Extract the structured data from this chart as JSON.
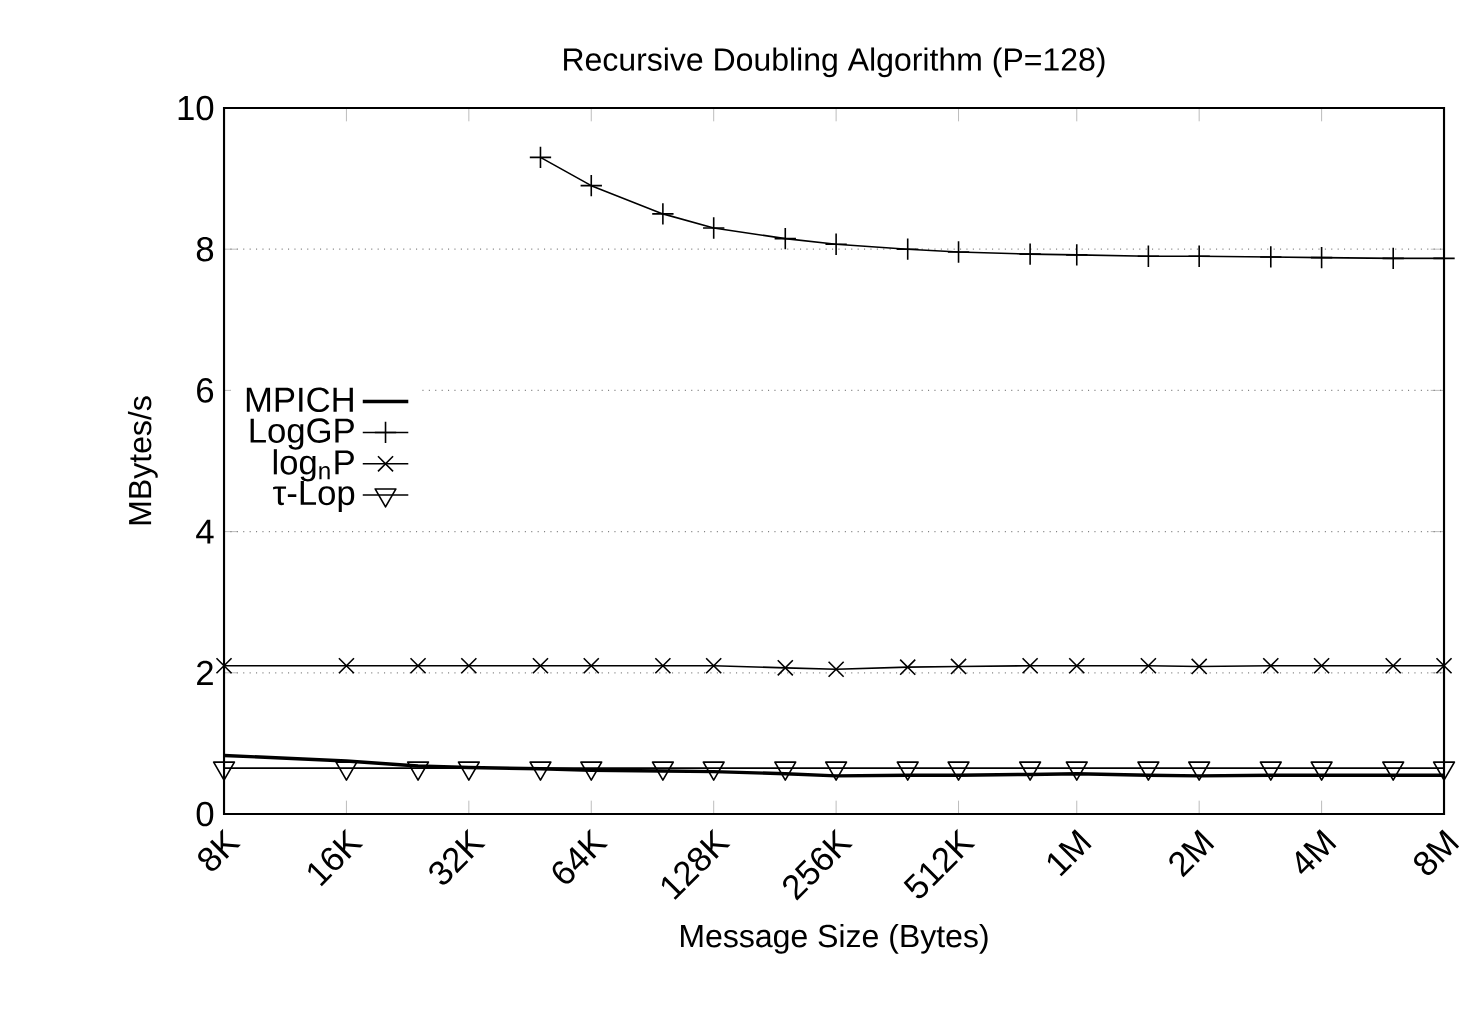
{
  "chart_data": {
    "type": "line",
    "title": "Recursive Doubling Algorithm (P=128)",
    "xlabel": "Message Size (Bytes)",
    "ylabel": "MBytes/s",
    "x": [
      8000,
      16000,
      24000,
      32000,
      48000,
      64000,
      96000,
      128000,
      192000,
      256000,
      384000,
      512000,
      768000,
      1000000,
      1500000,
      2000000,
      3000000,
      4000000,
      6000000,
      8000000
    ],
    "series": [
      {
        "name": "MPICH",
        "color": "#000000",
        "marker": "none",
        "values": [
          0.83,
          0.75,
          0.68,
          0.66,
          0.64,
          0.62,
          0.61,
          0.6,
          0.57,
          0.54,
          0.55,
          0.55,
          0.56,
          0.57,
          0.55,
          0.54,
          0.55,
          0.55,
          0.55,
          0.55
        ]
      },
      {
        "name": "LogGP",
        "color": "#000000",
        "marker": "plus",
        "values": [
          null,
          null,
          null,
          null,
          9.3,
          8.9,
          8.5,
          8.3,
          8.15,
          8.07,
          8.0,
          7.96,
          7.93,
          7.92,
          7.9,
          7.9,
          7.89,
          7.88,
          7.87,
          7.87
        ]
      },
      {
        "name": "log$_{n}$P",
        "color": "#000000",
        "marker": "cross",
        "values": [
          2.1,
          2.1,
          2.1,
          2.1,
          2.1,
          2.1,
          2.1,
          2.1,
          2.07,
          2.05,
          2.08,
          2.09,
          2.1,
          2.1,
          2.1,
          2.09,
          2.1,
          2.1,
          2.1,
          2.1
        ]
      },
      {
        "name": "τ-Lop",
        "color": "#000000",
        "marker": "triangle",
        "values": [
          0.65,
          0.65,
          0.65,
          0.65,
          0.65,
          0.65,
          0.65,
          0.65,
          0.65,
          0.65,
          0.65,
          0.65,
          0.65,
          0.65,
          0.65,
          0.65,
          0.65,
          0.65,
          0.65,
          0.65
        ]
      }
    ],
    "log": "x",
    "xlim": [
      8000,
      8000000
    ],
    "ylim": [
      0,
      10
    ],
    "xticks": [
      {
        "value": 8000,
        "label": "8K"
      },
      {
        "value": 16000,
        "label": "16K"
      },
      {
        "value": 32000,
        "label": "32K"
      },
      {
        "value": 64000,
        "label": "64K"
      },
      {
        "value": 128000,
        "label": "128K"
      },
      {
        "value": 256000,
        "label": "256K"
      },
      {
        "value": 512000,
        "label": "512K"
      },
      {
        "value": 1000000,
        "label": "1M"
      },
      {
        "value": 2000000,
        "label": "2M"
      },
      {
        "value": 4000000,
        "label": "4M"
      },
      {
        "value": 8000000,
        "label": "8M"
      }
    ],
    "yticks": [
      0,
      2,
      4,
      6,
      8,
      10
    ],
    "grid": "y",
    "legend": "left",
    "line_style": "solid"
  }
}
